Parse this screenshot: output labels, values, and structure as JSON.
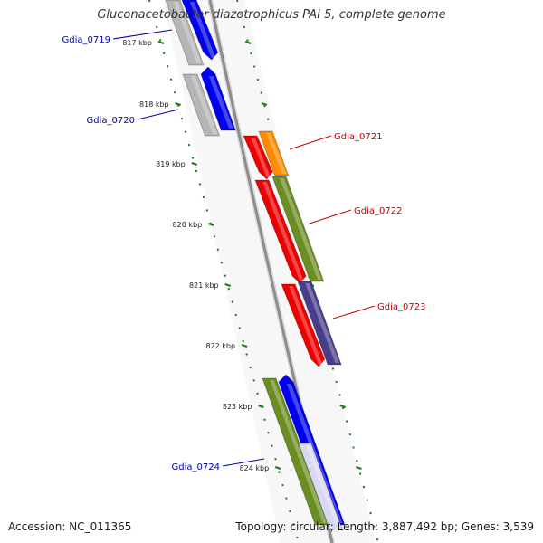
{
  "title": "Gluconacetobacter diazotrophicus PAI 5, complete genome",
  "accession": "Accession: NC_011365",
  "summary": "Topology: circular; Length: 3,887,492 bp; Genes: 3,539",
  "colors": {
    "background": "#ffffff",
    "backbone": "#8c8c8c",
    "tick": "#1a7a1a",
    "label_forward": "#0000aa",
    "label_reverse": "#cc0000",
    "gene_blue": "#0000ee",
    "gene_gray": "#b5b5b5",
    "gene_red": "#ee0000",
    "gene_orange": "#ff8c00",
    "gene_olive": "#6b8e23",
    "gene_slate": "#483d8b"
  },
  "scale": {
    "unit": "kbp",
    "ticks": [
      "817 kbp",
      "818 kbp",
      "819 kbp",
      "820 kbp",
      "821 kbp",
      "822 kbp",
      "823 kbp",
      "824 kbp"
    ]
  },
  "genes": [
    {
      "name": "Gdia_0719",
      "label_color": "label_forward"
    },
    {
      "name": "Gdia_0720",
      "label_color": "label_forward"
    },
    {
      "name": "Gdia_0721",
      "label_color": "label_reverse"
    },
    {
      "name": "Gdia_0722",
      "label_color": "label_reverse"
    },
    {
      "name": "Gdia_0723",
      "label_color": "label_reverse"
    },
    {
      "name": "Gdia_0724",
      "label_color": "label_forward"
    }
  ]
}
